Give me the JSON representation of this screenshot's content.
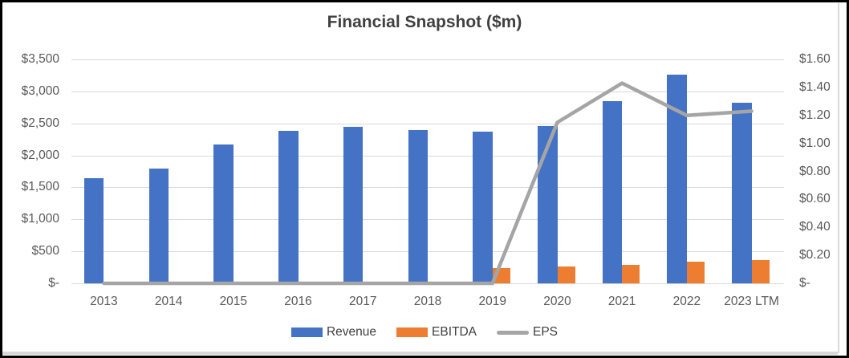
{
  "frame": {
    "border_color": "#000000",
    "background": "#FFFFFF"
  },
  "chart_data": {
    "type": "combo",
    "title": "Financial Snapshot ($m)",
    "categories": [
      "2013",
      "2014",
      "2015",
      "2016",
      "2017",
      "2018",
      "2019",
      "2020",
      "2021",
      "2022",
      "2023 LTM"
    ],
    "series": [
      {
        "name": "Revenue",
        "kind": "bar",
        "axis": "left",
        "color": "#4472C4",
        "values": [
          1640,
          1790,
          2170,
          2390,
          2450,
          2400,
          2370,
          2460,
          2845,
          3265,
          2825
        ]
      },
      {
        "name": "EBITDA",
        "kind": "bar",
        "axis": "left",
        "color": "#ED7D31",
        "values": [
          0,
          0,
          0,
          0,
          0,
          0,
          240,
          265,
          290,
          340,
          365
        ]
      },
      {
        "name": "EPS",
        "kind": "line",
        "axis": "right",
        "color": "#A5A5A5",
        "values": [
          0,
          0,
          0,
          0,
          0,
          0,
          0,
          1.15,
          1.43,
          1.2,
          1.23
        ]
      }
    ],
    "left_axis": {
      "min": 0,
      "max": 3500,
      "step": 500,
      "tick_labels": [
        "$3,500",
        "$3,000",
        "$2,500",
        "$2,000",
        "$1,500",
        "$1,000",
        "$500",
        "$-"
      ]
    },
    "right_axis": {
      "min": 0,
      "max": 1.6,
      "step": 0.2,
      "tick_labels": [
        "$1.60",
        "$1.40",
        "$1.20",
        "$1.00",
        "$0.80",
        "$0.60",
        "$0.40",
        "$0.20",
        "$-"
      ]
    },
    "legend_position": "bottom",
    "grid": true,
    "styles": {
      "gridline_color": "#D9D9D9",
      "axis_text_color": "#595959",
      "title_color": "#404040"
    }
  }
}
